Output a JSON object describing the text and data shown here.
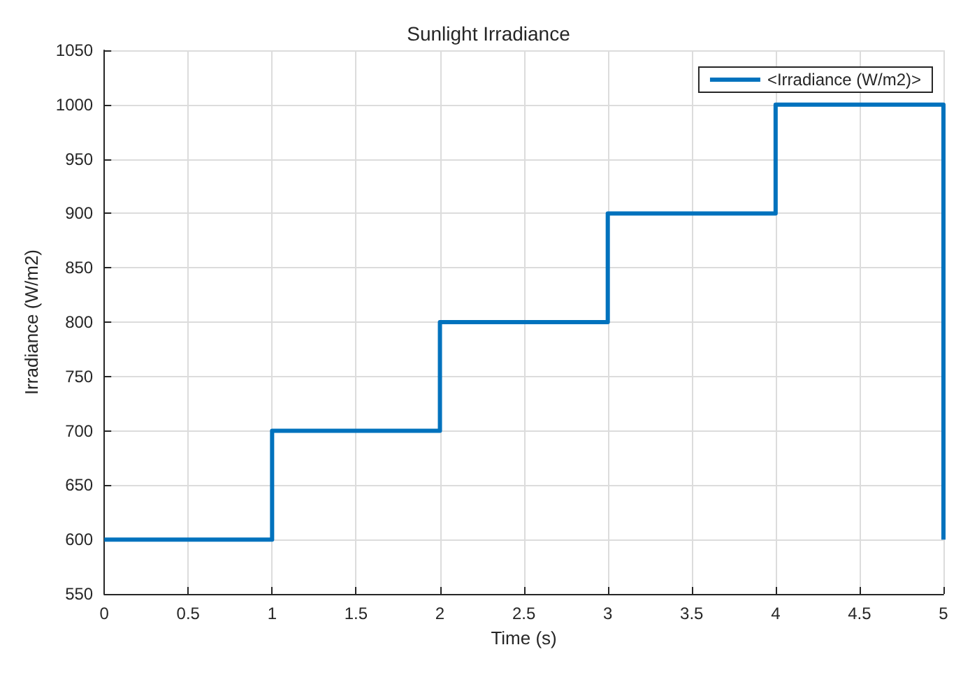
{
  "chart_data": {
    "type": "step",
    "title": "Sunlight Irradiance",
    "xlabel": "Time (s)",
    "ylabel": "Irradiance (W/m2)",
    "x": [
      0,
      1,
      2,
      3,
      4,
      5,
      5
    ],
    "series": [
      {
        "name": "<Irradiance (W/m2)>",
        "color": "#0072bd",
        "values": [
          600,
          700,
          800,
          900,
          1000,
          1000,
          600
        ]
      }
    ],
    "xlim": [
      0,
      5
    ],
    "xticks": [
      0,
      0.5,
      1,
      1.5,
      2,
      2.5,
      3,
      3.5,
      4,
      4.5,
      5
    ],
    "ylim": [
      550,
      1050
    ],
    "yticks": [
      550,
      600,
      650,
      700,
      750,
      800,
      850,
      900,
      950,
      1000,
      1050
    ],
    "grid": true,
    "legend": "top right",
    "marker": "none",
    "line_style": "solid"
  }
}
